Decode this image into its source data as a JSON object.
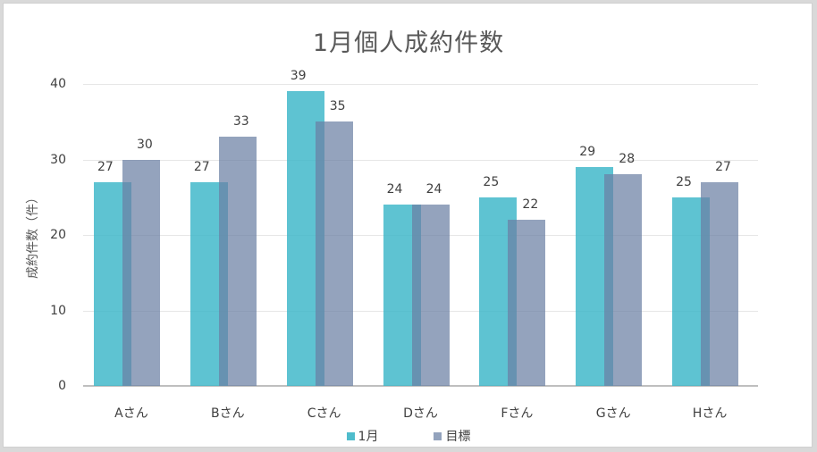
{
  "chart_data": {
    "type": "bar",
    "title": "1月個人成約件数",
    "xlabel": "",
    "ylabel": "成約件数（件）",
    "ylim": [
      0,
      40
    ],
    "yticks": [
      0,
      10,
      20,
      30,
      40
    ],
    "grid": true,
    "legend_position": "bottom",
    "categories": [
      "Aさん",
      "Bさん",
      "Cさん",
      "Dさん",
      "Fさん",
      "Gさん",
      "Hさん"
    ],
    "series": [
      {
        "name": "1月",
        "color": "#3ab6c8",
        "values": [
          27,
          27,
          39,
          24,
          25,
          29,
          25
        ]
      },
      {
        "name": "目標",
        "color": "#8a9bb8",
        "values": [
          30,
          33,
          35,
          24,
          22,
          28,
          27
        ]
      }
    ]
  },
  "ytick_labels": [
    "0",
    "10",
    "20",
    "30",
    "40"
  ],
  "legend": {
    "items": [
      "1月",
      "目標"
    ]
  }
}
